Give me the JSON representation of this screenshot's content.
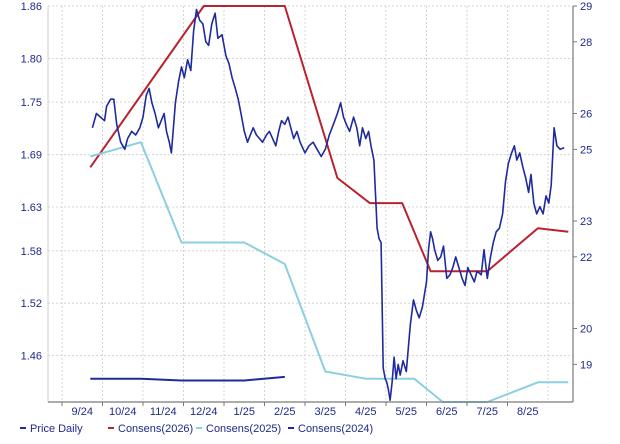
{
  "chart_data": {
    "type": "line",
    "grid": true,
    "legend_placement": "bottom",
    "x_ticks": [
      "9/24",
      "10/24",
      "11/24",
      "12/24",
      "1/25",
      "2/25",
      "3/25",
      "4/25",
      "5/25",
      "6/25",
      "7/25",
      "8/25"
    ],
    "y_left": {
      "ticks": [
        "1.86",
        "1.80",
        "1.75",
        "1.69",
        "1.63",
        "1.58",
        "1.52",
        "1.46"
      ],
      "range": [
        1.407,
        1.86
      ]
    },
    "y_right": {
      "ticks": [
        "29",
        "28",
        "26",
        "25",
        "23",
        "22",
        "20",
        "19"
      ],
      "range": [
        17.95,
        29.0
      ]
    },
    "series": [
      {
        "name": "Price Daily",
        "axis": "right",
        "color": "#1f2a9e",
        "points": [
          [
            0.75,
            25.6
          ],
          [
            0.85,
            26.0
          ],
          [
            0.95,
            25.9
          ],
          [
            1.05,
            25.8
          ],
          [
            1.1,
            26.2
          ],
          [
            1.2,
            26.4
          ],
          [
            1.28,
            26.4
          ],
          [
            1.35,
            25.7
          ],
          [
            1.45,
            25.2
          ],
          [
            1.55,
            25.0
          ],
          [
            1.62,
            25.3
          ],
          [
            1.72,
            25.5
          ],
          [
            1.82,
            25.4
          ],
          [
            1.92,
            25.6
          ],
          [
            2.0,
            25.9
          ],
          [
            2.08,
            26.5
          ],
          [
            2.15,
            26.7
          ],
          [
            2.22,
            26.3
          ],
          [
            2.3,
            26.0
          ],
          [
            2.38,
            25.6
          ],
          [
            2.45,
            25.8
          ],
          [
            2.52,
            26.0
          ],
          [
            2.58,
            25.5
          ],
          [
            2.65,
            25.2
          ],
          [
            2.7,
            24.9
          ],
          [
            2.8,
            26.3
          ],
          [
            2.88,
            26.9
          ],
          [
            2.95,
            27.3
          ],
          [
            3.02,
            27.0
          ],
          [
            3.1,
            27.5
          ],
          [
            3.18,
            27.2
          ],
          [
            3.25,
            28.3
          ],
          [
            3.32,
            28.9
          ],
          [
            3.4,
            28.6
          ],
          [
            3.48,
            28.5
          ],
          [
            3.55,
            28.0
          ],
          [
            3.62,
            27.9
          ],
          [
            3.7,
            28.5
          ],
          [
            3.78,
            28.8
          ],
          [
            3.85,
            28.1
          ],
          [
            3.95,
            28.2
          ],
          [
            4.05,
            27.6
          ],
          [
            4.12,
            27.4
          ],
          [
            4.2,
            27.0
          ],
          [
            4.28,
            26.7
          ],
          [
            4.35,
            26.4
          ],
          [
            4.42,
            26.0
          ],
          [
            4.5,
            25.5
          ],
          [
            4.58,
            25.2
          ],
          [
            4.65,
            25.4
          ],
          [
            4.72,
            25.6
          ],
          [
            4.8,
            25.4
          ],
          [
            4.88,
            25.3
          ],
          [
            4.95,
            25.2
          ],
          [
            5.05,
            25.4
          ],
          [
            5.12,
            25.5
          ],
          [
            5.2,
            25.3
          ],
          [
            5.28,
            25.1
          ],
          [
            5.35,
            25.5
          ],
          [
            5.42,
            25.8
          ],
          [
            5.5,
            25.7
          ],
          [
            5.58,
            25.9
          ],
          [
            5.65,
            25.6
          ],
          [
            5.72,
            25.3
          ],
          [
            5.8,
            25.5
          ],
          [
            5.88,
            25.2
          ],
          [
            6.0,
            24.9
          ],
          [
            6.1,
            25.1
          ],
          [
            6.2,
            25.2
          ],
          [
            6.3,
            25.0
          ],
          [
            6.4,
            24.8
          ],
          [
            6.5,
            25.0
          ],
          [
            6.6,
            25.4
          ],
          [
            6.7,
            25.7
          ],
          [
            6.8,
            26.0
          ],
          [
            6.88,
            26.3
          ],
          [
            6.95,
            25.9
          ],
          [
            7.02,
            25.7
          ],
          [
            7.1,
            25.5
          ],
          [
            7.2,
            25.9
          ],
          [
            7.28,
            25.6
          ],
          [
            7.35,
            25.1
          ],
          [
            7.42,
            25.6
          ],
          [
            7.5,
            25.3
          ],
          [
            7.57,
            25.5
          ],
          [
            7.63,
            25.1
          ],
          [
            7.7,
            24.7
          ],
          [
            7.78,
            22.8
          ],
          [
            7.83,
            22.5
          ],
          [
            7.88,
            22.4
          ],
          [
            7.93,
            18.9
          ],
          [
            7.98,
            18.6
          ],
          [
            8.02,
            18.5
          ],
          [
            8.06,
            18.3
          ],
          [
            8.1,
            18.0
          ],
          [
            8.15,
            18.5
          ],
          [
            8.2,
            19.2
          ],
          [
            8.25,
            18.6
          ],
          [
            8.3,
            19.0
          ],
          [
            8.35,
            18.7
          ],
          [
            8.42,
            19.1
          ],
          [
            8.5,
            18.8
          ],
          [
            8.6,
            20.1
          ],
          [
            8.68,
            20.8
          ],
          [
            8.75,
            20.5
          ],
          [
            8.82,
            20.3
          ],
          [
            8.9,
            20.6
          ],
          [
            9.0,
            21.3
          ],
          [
            9.05,
            22.2
          ],
          [
            9.1,
            22.7
          ],
          [
            9.15,
            22.5
          ],
          [
            9.2,
            22.2
          ],
          [
            9.28,
            21.9
          ],
          [
            9.35,
            22.0
          ],
          [
            9.42,
            22.3
          ],
          [
            9.5,
            21.4
          ],
          [
            9.58,
            21.5
          ],
          [
            9.65,
            21.7
          ],
          [
            9.72,
            22.0
          ],
          [
            9.8,
            21.7
          ],
          [
            9.88,
            21.4
          ],
          [
            9.95,
            21.2
          ],
          [
            10.02,
            21.7
          ],
          [
            10.1,
            21.5
          ],
          [
            10.18,
            21.3
          ],
          [
            10.25,
            21.6
          ],
          [
            10.35,
            21.5
          ],
          [
            10.42,
            22.2
          ],
          [
            10.5,
            21.4
          ],
          [
            10.58,
            22.0
          ],
          [
            10.65,
            22.4
          ],
          [
            10.72,
            22.7
          ],
          [
            10.8,
            22.8
          ],
          [
            10.88,
            23.2
          ],
          [
            10.95,
            24.1
          ],
          [
            11.02,
            24.6
          ],
          [
            11.1,
            24.9
          ],
          [
            11.17,
            25.1
          ],
          [
            11.23,
            24.7
          ],
          [
            11.3,
            24.9
          ],
          [
            11.38,
            24.5
          ],
          [
            11.45,
            24.2
          ],
          [
            11.52,
            23.8
          ],
          [
            11.58,
            24.3
          ],
          [
            11.65,
            23.5
          ],
          [
            11.72,
            23.2
          ],
          [
            11.8,
            23.4
          ],
          [
            11.88,
            23.2
          ],
          [
            11.95,
            23.7
          ],
          [
            12.02,
            23.5
          ],
          [
            12.08,
            24.0
          ],
          [
            12.15,
            25.6
          ],
          [
            12.22,
            25.1
          ],
          [
            12.3,
            25.0
          ],
          [
            12.4,
            25.05
          ]
        ]
      },
      {
        "name": "Consens(2026)",
        "axis": "right",
        "color": "#b8232f",
        "points": [
          [
            0.7,
            24.5
          ],
          [
            3.5,
            29.0
          ],
          [
            5.5,
            29.0
          ],
          [
            6.8,
            24.2
          ],
          [
            7.6,
            23.5
          ],
          [
            8.4,
            23.5
          ],
          [
            9.1,
            21.6
          ],
          [
            10.5,
            21.6
          ],
          [
            11.75,
            22.8
          ],
          [
            12.5,
            22.7
          ]
        ]
      },
      {
        "name": "Consens(2025)",
        "axis": "right",
        "color": "#8ccfe0",
        "points": [
          [
            0.7,
            24.8
          ],
          [
            1.95,
            25.2
          ],
          [
            2.95,
            22.4
          ],
          [
            4.5,
            22.4
          ],
          [
            5.5,
            21.8
          ],
          [
            6.5,
            18.8
          ],
          [
            7.5,
            18.6
          ],
          [
            8.7,
            18.6
          ],
          [
            9.4,
            17.95
          ],
          [
            10.5,
            17.95
          ],
          [
            11.75,
            18.5
          ],
          [
            12.5,
            18.5
          ]
        ]
      },
      {
        "name": "Consens(2024)",
        "axis": "right",
        "color": "#1f2a9e",
        "points": [
          [
            0.7,
            18.6
          ],
          [
            1.95,
            18.6
          ],
          [
            2.95,
            18.55
          ],
          [
            4.5,
            18.55
          ],
          [
            5.5,
            18.65
          ]
        ]
      }
    ]
  }
}
